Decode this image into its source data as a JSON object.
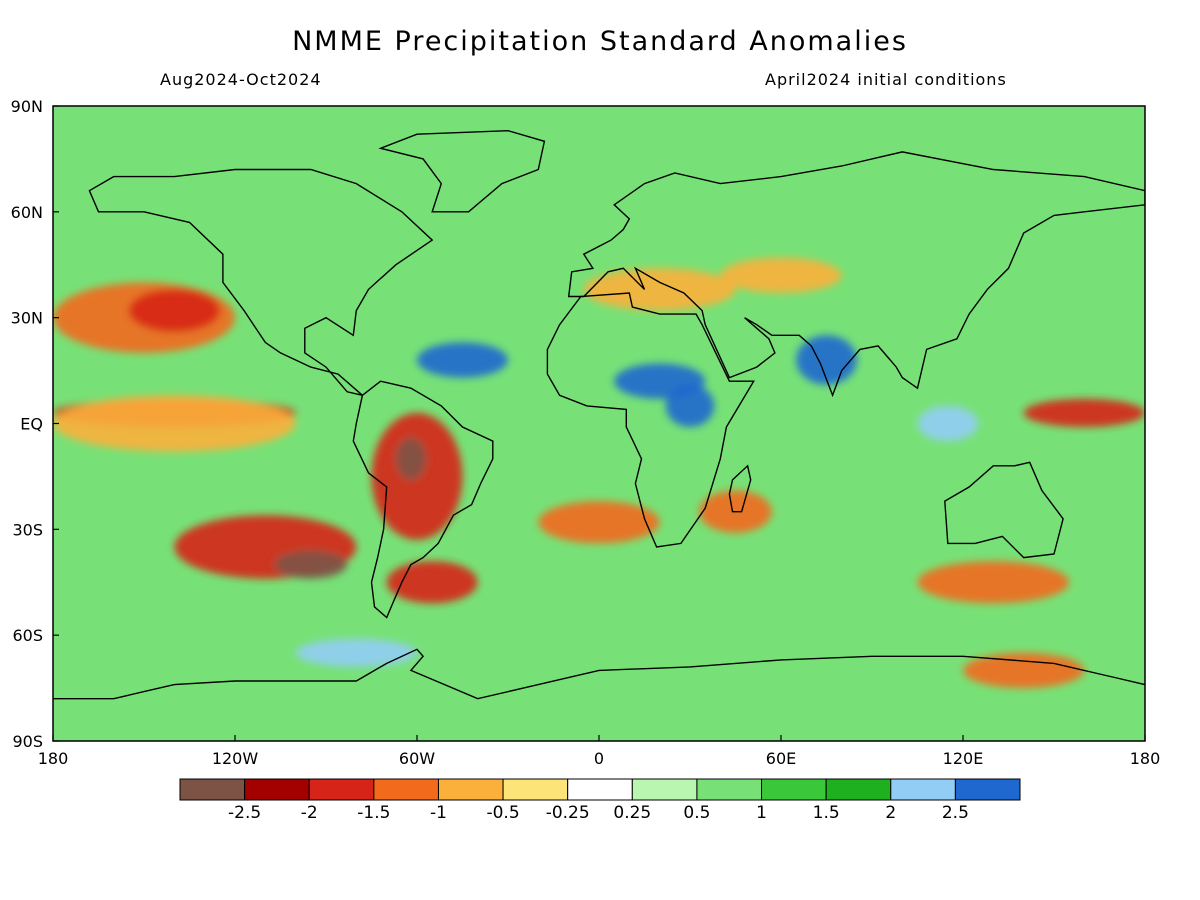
{
  "title": "NMME Precipitation Standard Anomalies",
  "subtitle_left": "Aug2024-Oct2024",
  "subtitle_right": "April2024 initial conditions",
  "map": {
    "projection": "equirectangular",
    "lon_range": [
      -180,
      180
    ],
    "lat_range": [
      -90,
      90
    ],
    "x_ticks": [
      {
        "lon": -180,
        "label": "180"
      },
      {
        "lon": -120,
        "label": "120W"
      },
      {
        "lon": -60,
        "label": "60W"
      },
      {
        "lon": 0,
        "label": "0"
      },
      {
        "lon": 60,
        "label": "60E"
      },
      {
        "lon": 120,
        "label": "120E"
      },
      {
        "lon": 180,
        "label": "180"
      }
    ],
    "y_ticks": [
      {
        "lat": 90,
        "label": "90N"
      },
      {
        "lat": 60,
        "label": "60N"
      },
      {
        "lat": 30,
        "label": "30N"
      },
      {
        "lat": 0,
        "label": "EQ"
      },
      {
        "lat": -30,
        "label": "30S"
      },
      {
        "lat": -60,
        "label": "60S"
      },
      {
        "lat": -90,
        "label": "90S"
      }
    ],
    "background_color": "#77e177",
    "anomaly_regions": [
      {
        "name": "northeast-pacific-dry",
        "lon": -150,
        "lat": 30,
        "rlon": 30,
        "rlat": 10,
        "color": "#f26a1c"
      },
      {
        "name": "northeast-pacific-dry-core",
        "lon": -140,
        "lat": 32,
        "rlon": 15,
        "rlat": 6,
        "color": "#d62418"
      },
      {
        "name": "equatorial-pacific-dry",
        "lon": -140,
        "lat": 3,
        "rlon": 40,
        "rlat": 4,
        "color": "#d62418"
      },
      {
        "name": "equatorial-pacific-dry-halo",
        "lon": -140,
        "lat": 0,
        "rlon": 40,
        "rlat": 8,
        "color": "#fbb03c"
      },
      {
        "name": "south-pacific-dry",
        "lon": -110,
        "lat": -35,
        "rlon": 30,
        "rlat": 9,
        "color": "#d62418"
      },
      {
        "name": "south-pacific-extreme-dry",
        "lon": -95,
        "lat": -40,
        "rlon": 12,
        "rlat": 4,
        "color": "#7d5346"
      },
      {
        "name": "south-america-dry",
        "lon": -60,
        "lat": -15,
        "rlon": 15,
        "rlat": 18,
        "color": "#d62418"
      },
      {
        "name": "south-america-extreme-dry",
        "lon": -62,
        "lat": -10,
        "rlon": 5,
        "rlat": 6,
        "color": "#7d5346"
      },
      {
        "name": "argentina-dry",
        "lon": -55,
        "lat": -45,
        "rlon": 15,
        "rlat": 6,
        "color": "#d62418"
      },
      {
        "name": "south-atlantic-dry",
        "lon": 0,
        "lat": -28,
        "rlon": 20,
        "rlat": 6,
        "color": "#f26a1c"
      },
      {
        "name": "madagascar-dry",
        "lon": 45,
        "lat": -25,
        "rlon": 12,
        "rlat": 6,
        "color": "#f26a1c"
      },
      {
        "name": "mediterranean-dry",
        "lon": 20,
        "lat": 38,
        "rlon": 25,
        "rlat": 6,
        "color": "#fbb03c"
      },
      {
        "name": "central-asia-dry",
        "lon": 60,
        "lat": 42,
        "rlon": 20,
        "rlat": 5,
        "color": "#fbb03c"
      },
      {
        "name": "west-pacific-dry",
        "lon": 160,
        "lat": 3,
        "rlon": 20,
        "rlat": 4,
        "color": "#d62418"
      },
      {
        "name": "south-indian-ocean-dry",
        "lon": 130,
        "lat": -45,
        "rlon": 25,
        "rlat": 6,
        "color": "#f26a1c"
      },
      {
        "name": "southern-ocean-dry",
        "lon": 140,
        "lat": -70,
        "rlon": 20,
        "rlat": 5,
        "color": "#f26a1c"
      },
      {
        "name": "sahel-wet",
        "lon": 20,
        "lat": 12,
        "rlon": 15,
        "rlat": 5,
        "color": "#1e68cf"
      },
      {
        "name": "east-africa-wet",
        "lon": 30,
        "lat": 5,
        "rlon": 8,
        "rlat": 6,
        "color": "#1e68cf"
      },
      {
        "name": "india-wet",
        "lon": 75,
        "lat": 18,
        "rlon": 10,
        "rlat": 7,
        "color": "#1e68cf"
      },
      {
        "name": "caribbean-atlantic-wet",
        "lon": -45,
        "lat": 18,
        "rlon": 15,
        "rlat": 5,
        "color": "#1e68cf"
      },
      {
        "name": "maritime-continent-wet",
        "lon": 115,
        "lat": 0,
        "rlon": 10,
        "rlat": 5,
        "color": "#92cdf5"
      },
      {
        "name": "southern-ocean-wet",
        "lon": -80,
        "lat": -65,
        "rlon": 20,
        "rlat": 4,
        "color": "#92cdf5"
      }
    ],
    "coastline_color": "#000000"
  },
  "colorbar": {
    "colors": [
      "#7d5346",
      "#a30000",
      "#d62418",
      "#f26a1c",
      "#fbb03c",
      "#fde479",
      "#ffffff",
      "#b9f7b0",
      "#77e177",
      "#3ac83a",
      "#1fb01f",
      "#92cdf5",
      "#1e68cf"
    ],
    "labels": [
      "-2.5",
      "-2",
      "-1.5",
      "-1",
      "-0.5",
      "-0.25",
      "0.25",
      "0.5",
      "1",
      "1.5",
      "2",
      "2.5"
    ]
  }
}
